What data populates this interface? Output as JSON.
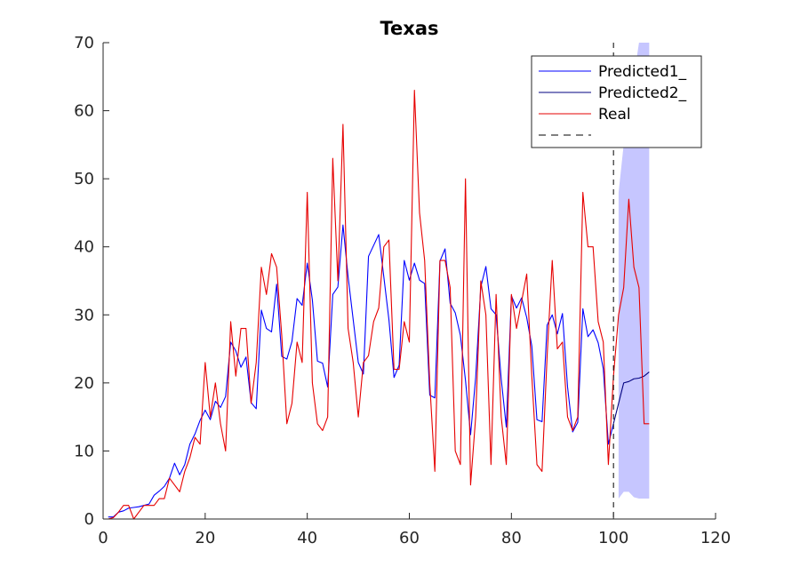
{
  "chart_data": {
    "type": "line",
    "title": "Texas",
    "xlabel": "",
    "ylabel": "",
    "xlim": [
      0,
      120
    ],
    "ylim": [
      0,
      70
    ],
    "xticks": [
      0,
      20,
      40,
      60,
      80,
      100,
      120
    ],
    "yticks": [
      0,
      10,
      20,
      30,
      40,
      50,
      60,
      70
    ],
    "vline_x": 100,
    "legend_position": "top-right",
    "series": [
      {
        "name": "Predicted1_",
        "color": "#0000ff",
        "x": [
          1,
          2,
          3,
          4,
          5,
          6,
          7,
          8,
          9,
          10,
          11,
          12,
          13,
          14,
          15,
          16,
          17,
          18,
          19,
          20,
          21,
          22,
          23,
          24,
          25,
          26,
          27,
          28,
          29,
          30,
          31,
          32,
          33,
          34,
          35,
          36,
          37,
          38,
          39,
          40,
          41,
          42,
          43,
          44,
          45,
          46,
          47,
          48,
          49,
          50,
          51,
          52,
          53,
          54,
          55,
          56,
          57,
          58,
          59,
          60,
          61,
          62,
          63,
          64,
          65,
          66,
          67,
          68,
          69,
          70,
          71,
          72,
          73,
          74,
          75,
          76,
          77,
          78,
          79,
          80,
          81,
          82,
          83,
          84,
          85,
          86,
          87,
          88,
          89,
          90,
          91,
          92,
          93,
          94,
          95,
          96,
          97,
          98,
          99,
          100
        ],
        "y": [
          0.3,
          0.3,
          1.0,
          1.2,
          1.6,
          1.7,
          1.8,
          2.0,
          2.2,
          3.5,
          4.1,
          4.8,
          6.0,
          8.2,
          6.5,
          8.0,
          11.0,
          12.5,
          14.5,
          16.0,
          14.6,
          17.3,
          16.4,
          18.0,
          26.0,
          24.7,
          22.3,
          23.8,
          17.1,
          16.2,
          30.7,
          28.0,
          27.5,
          34.5,
          23.9,
          23.5,
          26.1,
          32.4,
          31.4,
          37.6,
          32.2,
          23.2,
          22.9,
          19.4,
          33.0,
          34.1,
          43.2,
          35.6,
          29.3,
          23.0,
          21.3,
          38.6,
          40.2,
          41.8,
          35.6,
          29.3,
          20.8,
          22.6,
          38.0,
          35.1,
          37.6,
          35.1,
          34.6,
          18.2,
          17.8,
          37.9,
          39.7,
          31.7,
          30.3,
          27.0,
          20.4,
          12.4,
          20.8,
          34.1,
          37.1,
          30.9,
          30.0,
          20.6,
          13.5,
          32.8,
          31.0,
          32.5,
          29.6,
          25.4,
          14.6,
          14.3,
          28.5,
          30.0,
          27.2,
          30.2,
          19.4,
          12.8,
          14.2,
          30.9,
          26.8,
          27.8,
          25.9,
          22.1,
          11.0,
          14.0
        ]
      },
      {
        "name": "Predicted2_",
        "color": "#000080",
        "x": [
          100,
          101,
          102,
          103,
          104,
          105,
          106,
          107
        ],
        "y": [
          14.0,
          17.0,
          20.0,
          20.2,
          20.6,
          20.7,
          21.0,
          21.6
        ]
      },
      {
        "name": "Real",
        "color": "#e60000",
        "x": [
          1,
          2,
          3,
          4,
          5,
          6,
          7,
          8,
          9,
          10,
          11,
          12,
          13,
          14,
          15,
          16,
          17,
          18,
          19,
          20,
          21,
          22,
          23,
          24,
          25,
          26,
          27,
          28,
          29,
          30,
          31,
          32,
          33,
          34,
          35,
          36,
          37,
          38,
          39,
          40,
          41,
          42,
          43,
          44,
          45,
          46,
          47,
          48,
          49,
          50,
          51,
          52,
          53,
          54,
          55,
          56,
          57,
          58,
          59,
          60,
          61,
          62,
          63,
          64,
          65,
          66,
          67,
          68,
          69,
          70,
          71,
          72,
          73,
          74,
          75,
          76,
          77,
          78,
          79,
          80,
          81,
          82,
          83,
          84,
          85,
          86,
          87,
          88,
          89,
          90,
          91,
          92,
          93,
          94,
          95,
          96,
          97,
          98,
          99,
          100,
          101,
          102,
          103,
          104,
          105,
          106,
          107
        ],
        "y": [
          0,
          0.2,
          1.0,
          2.0,
          2.0,
          0,
          1.0,
          2.0,
          2.0,
          2.0,
          3.0,
          3.0,
          6.0,
          5.0,
          4.0,
          7.0,
          9.0,
          12.0,
          11.0,
          23.0,
          15.0,
          20.0,
          14.0,
          10.0,
          29.0,
          21.0,
          28.0,
          28.0,
          17.0,
          23.0,
          37.0,
          33.0,
          39.0,
          37.0,
          27.0,
          14.0,
          17.0,
          26.0,
          23.0,
          48.0,
          20.0,
          14.0,
          13.0,
          15.0,
          53.0,
          35.0,
          58.0,
          28.0,
          23.0,
          15.0,
          23.0,
          24.0,
          29.0,
          31.0,
          40.0,
          41.0,
          22.0,
          22.0,
          29.0,
          26.0,
          63.0,
          45.0,
          38.0,
          20.0,
          7.0,
          38.0,
          38.0,
          34.0,
          10.0,
          8.0,
          50.0,
          5.0,
          15.0,
          35.0,
          30.0,
          8.0,
          33.0,
          15.0,
          8.0,
          33.0,
          28.0,
          32.0,
          36.0,
          21.0,
          8.0,
          7.0,
          24.0,
          38.0,
          25.0,
          26.0,
          15.0,
          13.0,
          15.0,
          48.0,
          40.0,
          40.0,
          29.0,
          26.0,
          8.0,
          21.0,
          30.0,
          34.0,
          47.0,
          37.0,
          34.0,
          14.0,
          14.0
        ]
      },
      {
        "name": "",
        "color": "#000000",
        "style": "dashed"
      }
    ],
    "band": {
      "color": "#c6c6ff",
      "x": [
        101,
        102,
        103,
        104,
        105,
        106,
        107
      ],
      "upper": [
        48.0,
        55.0,
        60.0,
        65.0,
        70.0,
        70.0,
        70.0
      ],
      "lower": [
        3.0,
        4.0,
        4.0,
        3.2,
        3.0,
        3.0,
        3.0
      ]
    }
  }
}
